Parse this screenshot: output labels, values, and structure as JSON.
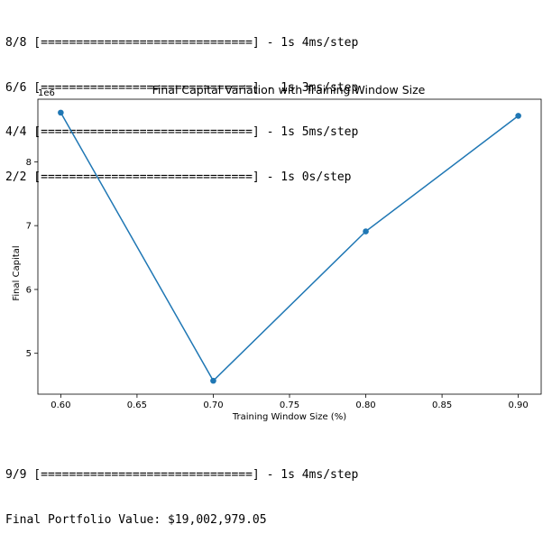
{
  "console": {
    "top_lines": [
      "8/8 [==============================] - 1s 4ms/step",
      "6/6 [==============================] - 1s 3ms/step",
      "4/4 [==============================] - 1s 5ms/step",
      "2/2 [==============================] - 1s 0s/step"
    ],
    "bottom_lines": [
      "9/9 [==============================] - 1s 4ms/step",
      "Final Portfolio Value: $19,002,979.05"
    ]
  },
  "chart_data": {
    "type": "line",
    "title": "Final Capital Variation with Training Window Size",
    "xlabel": "Training Window Size (%)",
    "ylabel": "Final Capital",
    "y_offset_label": "1e6",
    "x": [
      0.6,
      0.7,
      0.8,
      0.9
    ],
    "series": [
      {
        "values": [
          8.77,
          4.57,
          6.91,
          8.72
        ]
      }
    ],
    "xlim": [
      0.585,
      0.915
    ],
    "ylim": [
      4.36,
      8.98
    ],
    "xticks": [
      0.6,
      0.65,
      0.7,
      0.75,
      0.8,
      0.85,
      0.9
    ],
    "xtick_labels": [
      "0.60",
      "0.65",
      "0.70",
      "0.75",
      "0.80",
      "0.85",
      "0.90"
    ],
    "yticks": [
      5,
      6,
      7,
      8
    ],
    "ytick_labels": [
      "5",
      "6",
      "7",
      "8"
    ],
    "grid": false,
    "line_color": "#1f77b4",
    "marker": "circle"
  }
}
